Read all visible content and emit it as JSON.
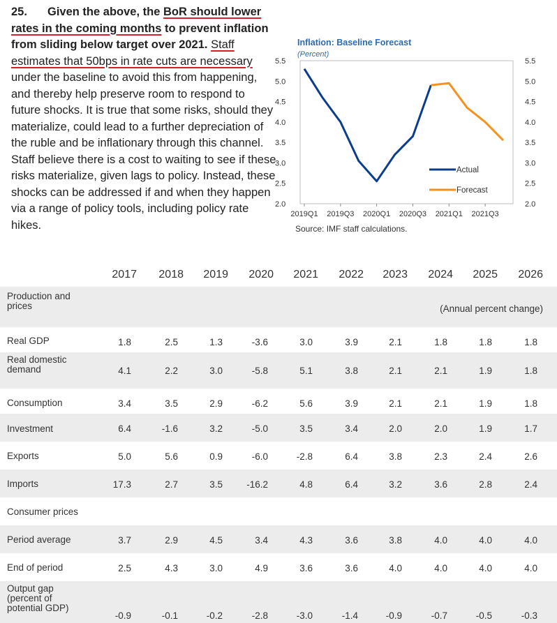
{
  "paragraph": {
    "number": "25.",
    "bold_pre": "Given the above, the ",
    "bold_underlined": "BoR should lower rates in the coming months",
    "bold_post": " to prevent inflation from sliding below target over 2021.",
    "underlined": "Staff estimates that 50bps in rate cuts are necessary",
    "rest": " under the baseline to avoid this from happening, and thereby help preserve room to respond to future shocks. It is true that some risks, should they materialize, could lead to a further depreciation of the ruble and be inflationary through this channel. Staff believe there is a cost to waiting to see if these risks materialize, given lags to policy. Instead, these shocks can be addressed if and when they happen via a range of policy tools, including policy rate hikes."
  },
  "chart_data": {
    "type": "line",
    "title": "Inflation: Baseline Forecast",
    "subtitle": "(Percent)",
    "source": "Source: IMF staff calculations.",
    "ylim": [
      2.0,
      5.5
    ],
    "yticks": [
      "5.5",
      "5.0",
      "4.5",
      "4.0",
      "3.5",
      "3.0",
      "2.5",
      "2.0"
    ],
    "x_tick_labels": [
      "2019Q1",
      "2019Q3",
      "2020Q1",
      "2020Q3",
      "2021Q1",
      "2021Q3"
    ],
    "x": [
      "2019Q1",
      "2019Q2",
      "2019Q3",
      "2019Q4",
      "2020Q1",
      "2020Q2",
      "2020Q3",
      "2020Q4",
      "2021Q1",
      "2021Q2",
      "2021Q3",
      "2021Q4"
    ],
    "series": [
      {
        "name": "Actual",
        "color": "#0b3d8c",
        "values": [
          5.3,
          4.6,
          4.0,
          3.05,
          2.55,
          3.2,
          3.65,
          4.9,
          null,
          null,
          null,
          null
        ]
      },
      {
        "name": "Forecast",
        "color": "#f5921e",
        "values": [
          null,
          null,
          null,
          null,
          null,
          null,
          null,
          4.9,
          4.95,
          4.35,
          4.0,
          3.55
        ]
      }
    ]
  },
  "table": {
    "years": [
      "2017",
      "2018",
      "2019",
      "2020",
      "2021",
      "2022",
      "2023",
      "2024",
      "2025",
      "2026"
    ],
    "unit_note": "(Annual percent change)",
    "rows": [
      {
        "label": "Production and prices",
        "values": []
      },
      {
        "label": "Real GDP",
        "values": [
          "1.8",
          "2.5",
          "1.3",
          "-3.6",
          "3.0",
          "3.9",
          "2.1",
          "1.8",
          "1.8",
          "1.8"
        ]
      },
      {
        "label": "Real domestic demand",
        "values": [
          "4.1",
          "2.2",
          "3.0",
          "-5.8",
          "5.1",
          "3.8",
          "2.1",
          "2.1",
          "1.9",
          "1.8"
        ]
      },
      {
        "label": "Consumption",
        "values": [
          "3.4",
          "3.5",
          "2.9",
          "-6.2",
          "5.6",
          "3.9",
          "2.1",
          "2.1",
          "1.9",
          "1.8"
        ]
      },
      {
        "label": "Investment",
        "values": [
          "6.4",
          "-1.6",
          "3.2",
          "-5.0",
          "3.5",
          "3.4",
          "2.0",
          "2.0",
          "1.9",
          "1.7"
        ]
      },
      {
        "label": "Exports",
        "values": [
          "5.0",
          "5.6",
          "0.9",
          "-6.0",
          "-2.8",
          "6.4",
          "3.8",
          "2.3",
          "2.4",
          "2.6"
        ]
      },
      {
        "label": "Imports",
        "values": [
          "17.3",
          "2.7",
          "3.5",
          "-16.2",
          "4.8",
          "6.4",
          "3.2",
          "3.6",
          "2.8",
          "2.4"
        ]
      },
      {
        "label": "Consumer prices",
        "values": []
      },
      {
        "label": "Period average",
        "values": [
          "3.7",
          "2.9",
          "4.5",
          "3.4",
          "4.3",
          "3.6",
          "3.8",
          "4.0",
          "4.0",
          "4.0"
        ]
      },
      {
        "label": "End of period",
        "values": [
          "2.5",
          "4.3",
          "3.0",
          "4.9",
          "3.6",
          "3.6",
          "4.0",
          "4.0",
          "4.0",
          "4.0"
        ]
      },
      {
        "label": "Output gap (percent of potential GDP)",
        "values": [
          "-0.9",
          "-0.1",
          "-0.2",
          "-2.8",
          "-3.0",
          "-1.4",
          "-0.9",
          "-0.7",
          "-0.5",
          "-0.3"
        ]
      }
    ]
  }
}
